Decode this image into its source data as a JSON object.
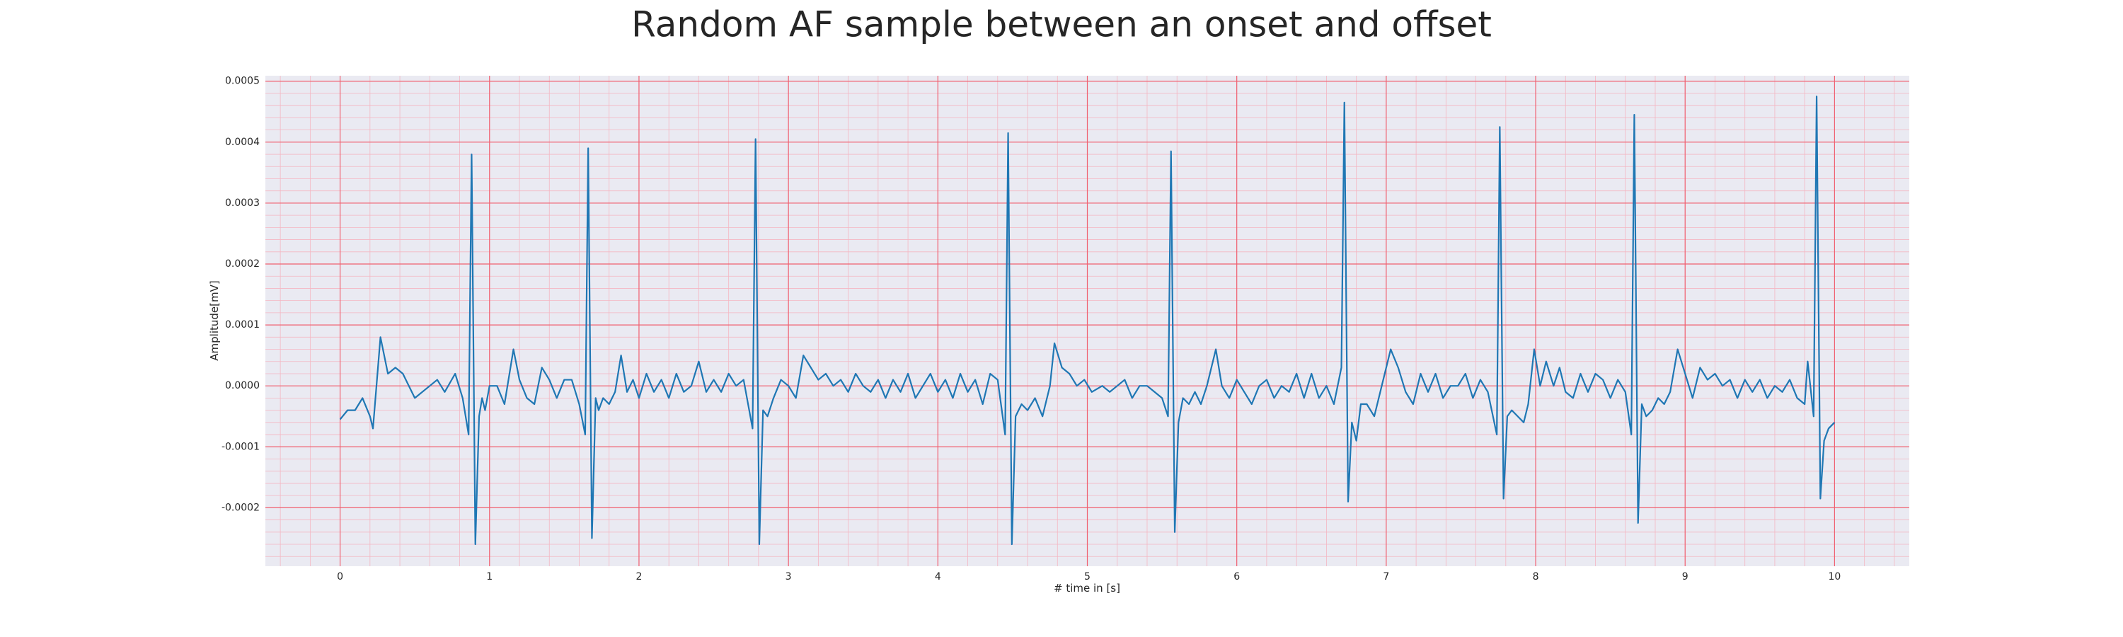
{
  "chart_data": {
    "type": "line",
    "title": "Random AF sample between an onset and offset",
    "xlabel": "# time in [s]",
    "ylabel": "Amplitude[mV]",
    "color": "#1f77b4",
    "grid": true,
    "minor_grid": true,
    "xlim": [
      -0.5,
      10.5
    ],
    "ylim": [
      -0.000296,
      0.000509
    ],
    "xticks": [
      0,
      1,
      2,
      3,
      4,
      5,
      6,
      7,
      8,
      9,
      10
    ],
    "yticks": [
      -0.0002,
      -0.0001,
      {
        "value": 0,
        "label": "0.0000"
      },
      0.0001,
      0.0002,
      0.0003,
      0.0004,
      0.0005
    ],
    "x": [
      0,
      0.05,
      0.1,
      0.15,
      0.2,
      0.22,
      0.27,
      0.32,
      0.37,
      0.42,
      0.5,
      0.6,
      0.65,
      0.7,
      0.77,
      0.82,
      0.86,
      0.88,
      0.905,
      0.93,
      0.95,
      0.97,
      1.0,
      1.05,
      1.1,
      1.16,
      1.2,
      1.25,
      1.3,
      1.35,
      1.4,
      1.45,
      1.5,
      1.55,
      1.6,
      1.64,
      1.66,
      1.685,
      1.71,
      1.73,
      1.76,
      1.8,
      1.84,
      1.88,
      1.92,
      1.96,
      2.0,
      2.05,
      2.1,
      2.15,
      2.2,
      2.25,
      2.3,
      2.35,
      2.4,
      2.45,
      2.5,
      2.55,
      2.6,
      2.65,
      2.7,
      2.76,
      2.78,
      2.805,
      2.83,
      2.86,
      2.9,
      2.95,
      3.0,
      3.05,
      3.1,
      3.15,
      3.2,
      3.25,
      3.3,
      3.35,
      3.4,
      3.45,
      3.5,
      3.55,
      3.6,
      3.65,
      3.7,
      3.75,
      3.8,
      3.85,
      3.9,
      3.95,
      4.0,
      4.05,
      4.1,
      4.15,
      4.2,
      4.25,
      4.3,
      4.35,
      4.4,
      4.45,
      4.47,
      4.495,
      4.52,
      4.56,
      4.6,
      4.65,
      4.7,
      4.75,
      4.78,
      4.83,
      4.88,
      4.93,
      4.98,
      5.03,
      5.1,
      5.15,
      5.2,
      5.25,
      5.3,
      5.35,
      5.4,
      5.45,
      5.5,
      5.54,
      5.56,
      5.585,
      5.61,
      5.64,
      5.68,
      5.72,
      5.76,
      5.8,
      5.86,
      5.9,
      5.95,
      6.0,
      6.05,
      6.1,
      6.15,
      6.2,
      6.25,
      6.3,
      6.35,
      6.4,
      6.45,
      6.5,
      6.55,
      6.6,
      6.65,
      6.7,
      6.72,
      6.745,
      6.77,
      6.8,
      6.83,
      6.87,
      6.92,
      6.97,
      7.03,
      7.08,
      7.13,
      7.18,
      7.23,
      7.28,
      7.33,
      7.38,
      7.43,
      7.48,
      7.53,
      7.58,
      7.63,
      7.68,
      7.74,
      7.76,
      7.785,
      7.81,
      7.84,
      7.88,
      7.92,
      7.95,
      7.99,
      8.03,
      8.07,
      8.12,
      8.16,
      8.2,
      8.25,
      8.3,
      8.35,
      8.4,
      8.45,
      8.5,
      8.55,
      8.6,
      8.64,
      8.66,
      8.685,
      8.71,
      8.74,
      8.78,
      8.82,
      8.86,
      8.9,
      8.95,
      9.0,
      9.05,
      9.1,
      9.15,
      9.2,
      9.25,
      9.3,
      9.35,
      9.4,
      9.45,
      9.5,
      9.55,
      9.6,
      9.65,
      9.7,
      9.75,
      9.8,
      9.82,
      9.86,
      9.88,
      9.905,
      9.93,
      9.96,
      10.0
    ],
    "values": [
      -5.5e-05,
      -4e-05,
      -4e-05,
      -2e-05,
      -5e-05,
      -7e-05,
      8e-05,
      2e-05,
      3e-05,
      2e-05,
      -2e-05,
      0,
      1e-05,
      -1e-05,
      2e-05,
      -2e-05,
      -8e-05,
      0.00038,
      -0.00026,
      -5e-05,
      -2e-05,
      -4e-05,
      0,
      0,
      -3e-05,
      6e-05,
      1e-05,
      -2e-05,
      -3e-05,
      3e-05,
      1e-05,
      -2e-05,
      1e-05,
      1e-05,
      -3e-05,
      -8e-05,
      0.00039,
      -0.00025,
      -2e-05,
      -4e-05,
      -2e-05,
      -3e-05,
      -1e-05,
      5e-05,
      -1e-05,
      1e-05,
      -2e-05,
      2e-05,
      -1e-05,
      1e-05,
      -2e-05,
      2e-05,
      -1e-05,
      0,
      4e-05,
      -1e-05,
      1e-05,
      -1e-05,
      2e-05,
      0,
      1e-05,
      -7e-05,
      0.000405,
      -0.00026,
      -4e-05,
      -5e-05,
      -2e-05,
      1e-05,
      0,
      -2e-05,
      5e-05,
      3e-05,
      1e-05,
      2e-05,
      0,
      1e-05,
      -1e-05,
      2e-05,
      0,
      -1e-05,
      1e-05,
      -2e-05,
      1e-05,
      -1e-05,
      2e-05,
      -2e-05,
      0,
      2e-05,
      -1e-05,
      1e-05,
      -2e-05,
      2e-05,
      -1e-05,
      1e-05,
      -3e-05,
      2e-05,
      1e-05,
      -8e-05,
      0.000415,
      -0.00026,
      -5e-05,
      -3e-05,
      -4e-05,
      -2e-05,
      -5e-05,
      0,
      7e-05,
      3e-05,
      2e-05,
      0,
      1e-05,
      -1e-05,
      0,
      -1e-05,
      0,
      1e-05,
      -2e-05,
      0,
      0,
      -1e-05,
      -2e-05,
      -5e-05,
      0.000385,
      -0.00024,
      -6e-05,
      -2e-05,
      -3e-05,
      -1e-05,
      -3e-05,
      0,
      6e-05,
      0,
      -2e-05,
      1e-05,
      -1e-05,
      -3e-05,
      0,
      1e-05,
      -2e-05,
      0,
      -1e-05,
      2e-05,
      -2e-05,
      2e-05,
      -2e-05,
      0,
      -3e-05,
      3e-05,
      0.000465,
      -0.00019,
      -6e-05,
      -9e-05,
      -3e-05,
      -3e-05,
      -5e-05,
      0,
      6e-05,
      3e-05,
      -1e-05,
      -3e-05,
      2e-05,
      -1e-05,
      2e-05,
      -2e-05,
      0,
      0,
      2e-05,
      -2e-05,
      1e-05,
      -1e-05,
      -8e-05,
      0.000425,
      -0.000185,
      -5e-05,
      -4e-05,
      -5e-05,
      -6e-05,
      -3e-05,
      6e-05,
      0,
      4e-05,
      0,
      3e-05,
      -1e-05,
      -2e-05,
      2e-05,
      -1e-05,
      2e-05,
      1e-05,
      -2e-05,
      1e-05,
      -1e-05,
      -8e-05,
      0.000445,
      -0.000225,
      -3e-05,
      -5e-05,
      -4e-05,
      -2e-05,
      -3e-05,
      -1e-05,
      6e-05,
      2e-05,
      -2e-05,
      3e-05,
      1e-05,
      2e-05,
      0,
      1e-05,
      -2e-05,
      1e-05,
      -1e-05,
      1e-05,
      -2e-05,
      0,
      -1e-05,
      1e-05,
      -2e-05,
      -3e-05,
      4e-05,
      -5e-05,
      0.000475,
      -0.000185,
      -9e-05,
      -7e-05,
      -6e-05
    ]
  }
}
